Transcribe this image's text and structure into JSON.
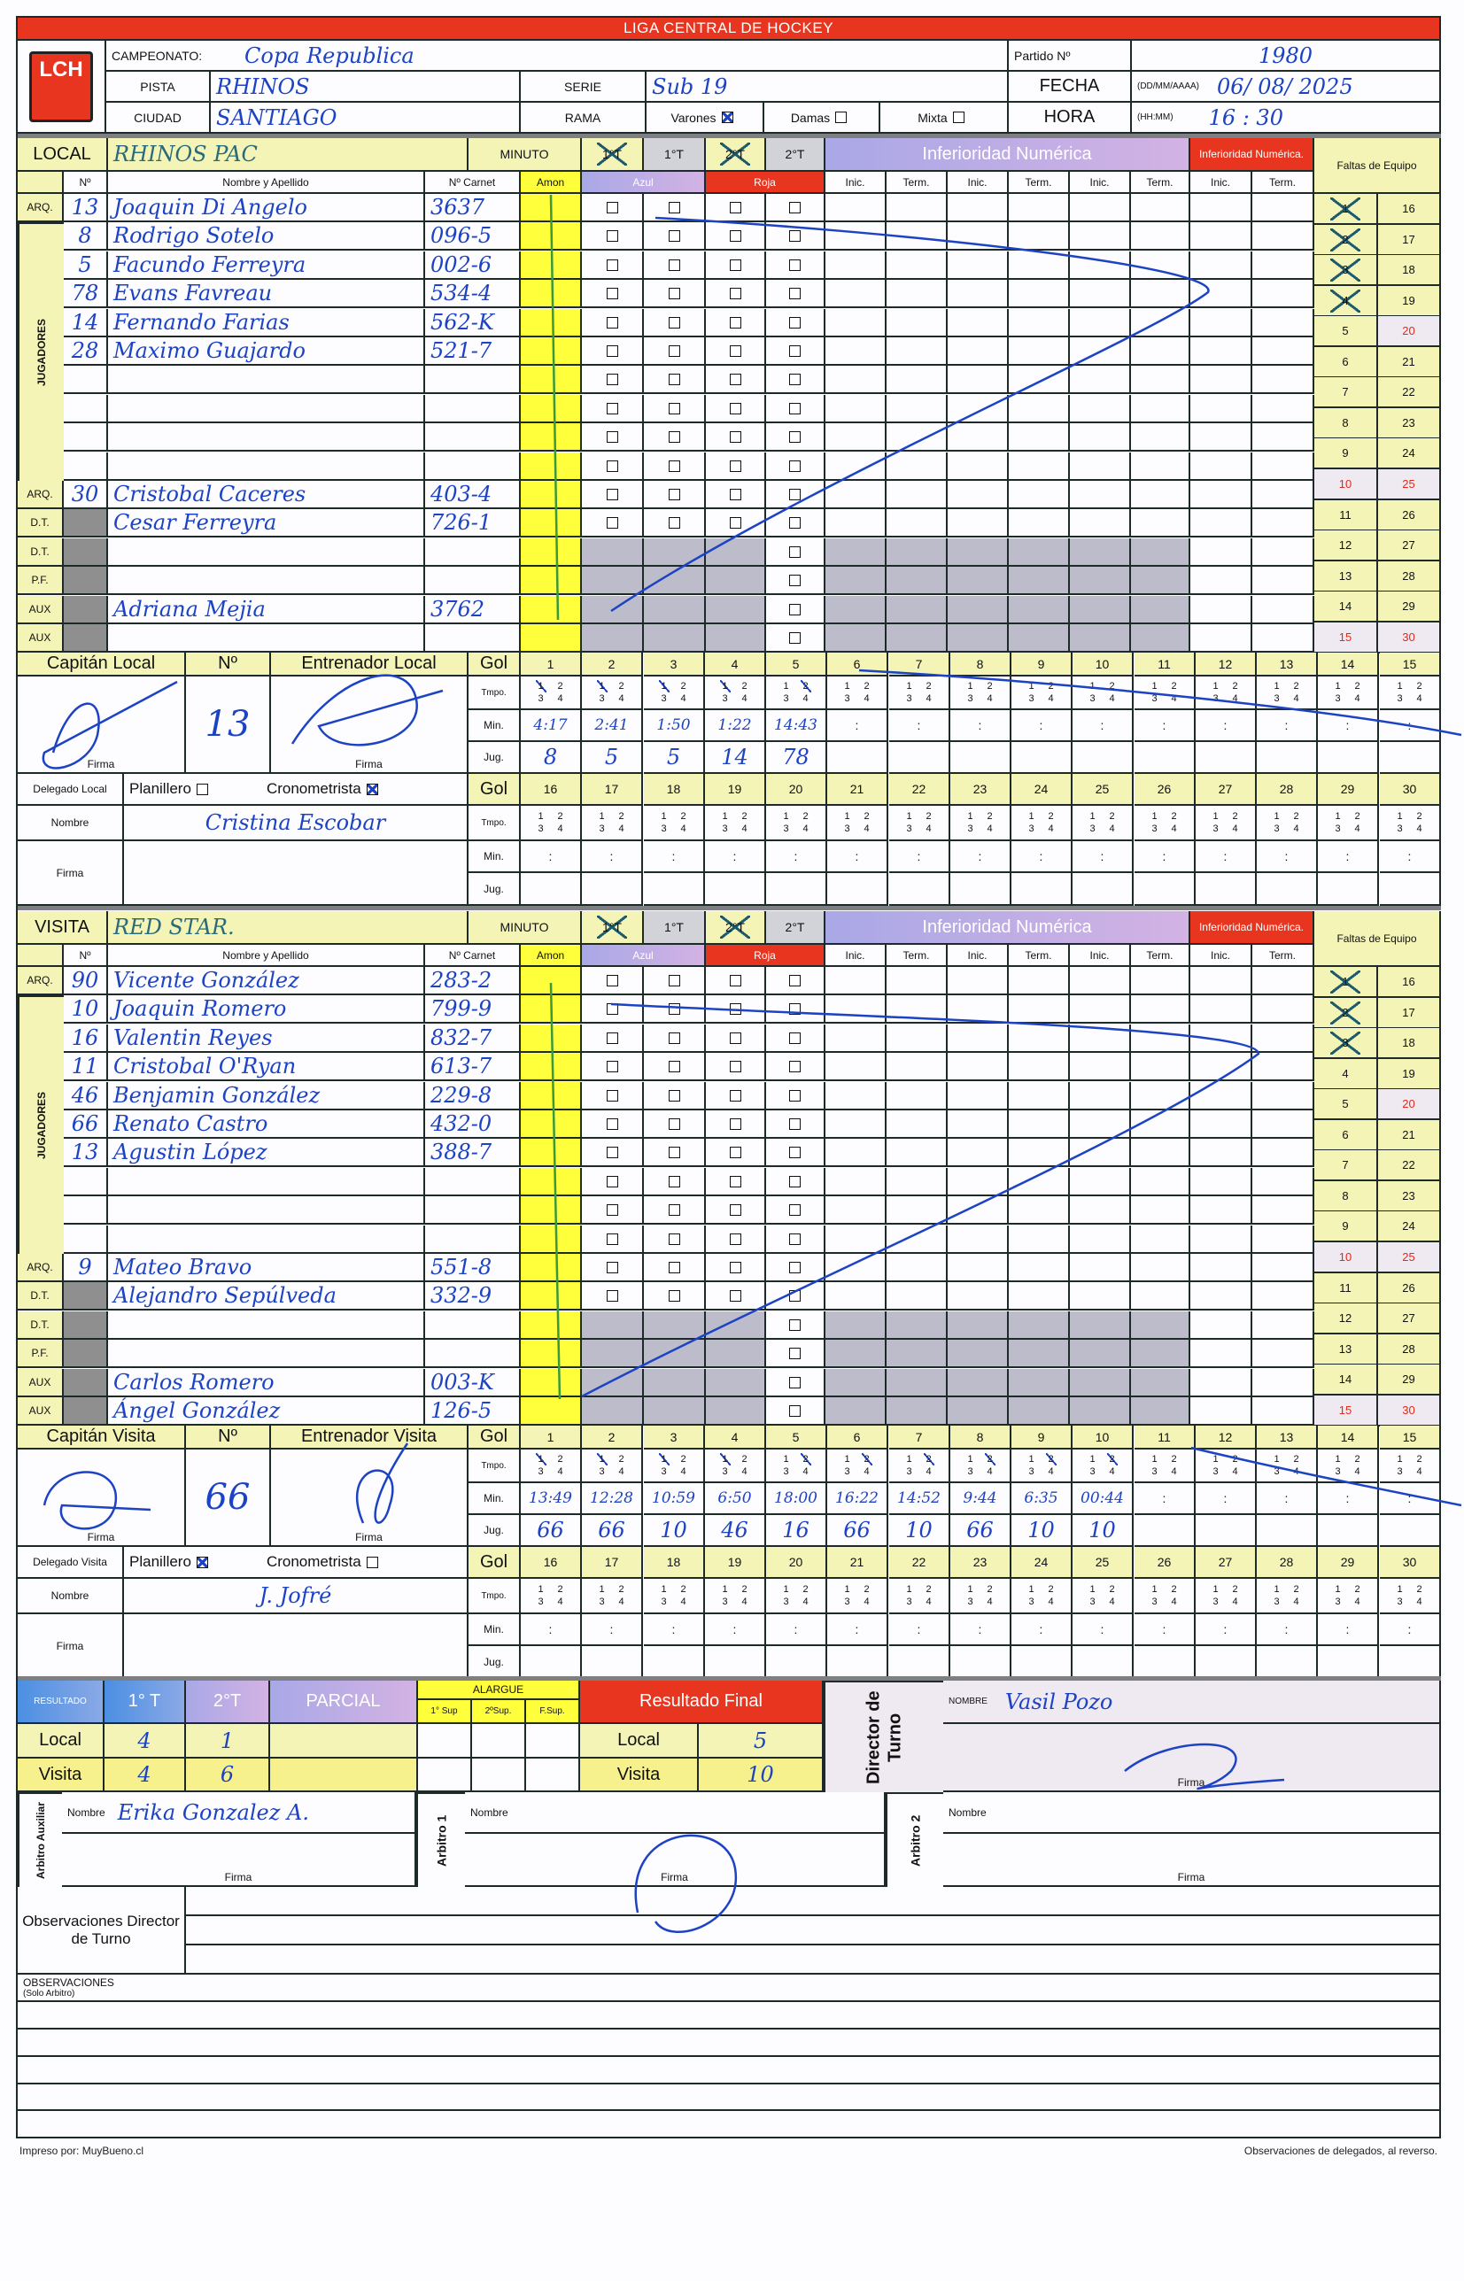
{
  "title": "LIGA CENTRAL DE HOCKEY",
  "logo_text": "LCH",
  "header": {
    "campeonato_label": "CAMPEONATO:",
    "campeonato": "Copa Republica",
    "partido_label": "Partido Nº",
    "partido": "1980",
    "pista_label": "PISTA",
    "pista": "RHINOS",
    "serie_label": "SERIE",
    "serie": "Sub 19",
    "fecha_label": "FECHA",
    "fecha_format": "(DD/MM/AAAA)",
    "fecha": "06/ 08/ 2025",
    "ciudad_label": "CIUDAD",
    "ciudad": "SANTIAGO",
    "rama_label": "RAMA",
    "rama": [
      {
        "label": "Varones",
        "checked": true
      },
      {
        "label": "Damas",
        "checked": false
      },
      {
        "label": "Mixta",
        "checked": false
      }
    ],
    "hora_label": "HORA",
    "hora_format": "(HH:MM)",
    "hora": "16 : 30"
  },
  "columns": {
    "num": "Nº",
    "name": "Nombre y Apellido",
    "carnet": "Nº Carnet",
    "amon": "Amon",
    "azul": "Azul",
    "roja": "Roja",
    "inic": "Inic.",
    "term": "Term.",
    "jugadores": "JUGADORES"
  },
  "goal_labels": {
    "gol": "Gol",
    "tmpo": "Tmpo.",
    "min": "Min.",
    "jug": "Jug.",
    "colon": ":",
    "digits": [
      "1",
      "2",
      "3",
      "4"
    ]
  },
  "goal_numbers": [
    "1",
    "2",
    "3",
    "4",
    "5",
    "6",
    "7",
    "8",
    "9",
    "10",
    "11",
    "12",
    "13",
    "14",
    "15",
    "16",
    "17",
    "18",
    "19",
    "20",
    "21",
    "22",
    "23",
    "24",
    "25",
    "26",
    "27",
    "28",
    "29",
    "30"
  ],
  "teams": [
    {
      "label": "LOCAL",
      "name": "RHINOS   PAC",
      "minuto_label": "MINUTO",
      "periods": [
        {
          "label": "1°T",
          "crossed": true
        },
        {
          "label": "1°T",
          "crossed": false
        },
        {
          "label": "2°T",
          "crossed": true
        },
        {
          "label": "2°T",
          "crossed": false
        }
      ],
      "inferioridad_label": "Inferioridad Numérica",
      "inferioridad2_label": "Inferioridad Numérica.",
      "faltas_label": "Faltas de Equipo",
      "faltas_marked": 4,
      "rows": [
        {
          "role": "ARQ.",
          "num": "13",
          "name": "Joaquin Di Angelo",
          "carnet": "3637"
        },
        {
          "role": "",
          "num": "8",
          "name": "Rodrigo Sotelo",
          "carnet": "096-5"
        },
        {
          "role": "",
          "num": "5",
          "name": "Facundo Ferreyra",
          "carnet": "002-6"
        },
        {
          "role": "",
          "num": "78",
          "name": "Evans Favreau",
          "carnet": "534-4"
        },
        {
          "role": "",
          "num": "14",
          "name": "Fernando Farias",
          "carnet": "562-K"
        },
        {
          "role": "",
          "num": "28",
          "name": "Maximo Guajardo",
          "carnet": "521-7"
        },
        {
          "role": "",
          "num": "",
          "name": "",
          "carnet": ""
        },
        {
          "role": "",
          "num": "",
          "name": "",
          "carnet": ""
        },
        {
          "role": "",
          "num": "",
          "name": "",
          "carnet": ""
        },
        {
          "role": "",
          "num": "",
          "name": "",
          "carnet": ""
        },
        {
          "role": "ARQ.",
          "num": "30",
          "name": "Cristobal Caceres",
          "carnet": "403-4"
        },
        {
          "role": "D.T.",
          "num": "",
          "name": "Cesar Ferreyra",
          "carnet": "726-1"
        },
        {
          "role": "D.T.",
          "num": "",
          "name": "",
          "carnet": ""
        },
        {
          "role": "P.F.",
          "num": "",
          "name": "",
          "carnet": ""
        },
        {
          "role": "AUX",
          "num": "",
          "name": "Adriana Mejia",
          "carnet": "3762"
        },
        {
          "role": "AUX",
          "num": "",
          "name": "",
          "carnet": ""
        }
      ],
      "captain": {
        "label": "Capitán Local",
        "num_label": "Nº",
        "num": "13",
        "coach_label": "Entrenador Local",
        "firma_label": "Firma"
      },
      "delegado": {
        "label": "Delegado Local",
        "planillero": "Planillero",
        "planillero_checked": false,
        "crono": "Cronometrista",
        "crono_checked": true,
        "nombre_label": "Nombre",
        "nombre": "Cristina Escobar",
        "firma_label": "Firma"
      },
      "goals": [
        {
          "period": 1,
          "min": "4:17",
          "player": "8"
        },
        {
          "period": 1,
          "min": "2:41",
          "player": "5"
        },
        {
          "period": 1,
          "min": "1:50",
          "player": "5"
        },
        {
          "period": 1,
          "min": "1:22",
          "player": "14"
        },
        {
          "period": 2,
          "min": "14:43",
          "player": "78"
        }
      ]
    },
    {
      "label": "VISITA",
      "name": "RED   STAR.",
      "minuto_label": "MINUTO",
      "periods": [
        {
          "label": "1°T",
          "crossed": true
        },
        {
          "label": "1°T",
          "crossed": false
        },
        {
          "label": "2°T",
          "crossed": true
        },
        {
          "label": "2°T",
          "crossed": false
        }
      ],
      "inferioridad_label": "Inferioridad Numérica",
      "inferioridad2_label": "Inferioridad Numérica.",
      "faltas_label": "Faltas de Equipo",
      "faltas_marked": 3,
      "rows": [
        {
          "role": "ARQ.",
          "num": "90",
          "name": "Vicente González",
          "carnet": "283-2"
        },
        {
          "role": "",
          "num": "10",
          "name": "Joaquin Romero",
          "carnet": "799-9"
        },
        {
          "role": "",
          "num": "16",
          "name": "Valentin Reyes",
          "carnet": "832-7"
        },
        {
          "role": "",
          "num": "11",
          "name": "Cristobal O'Ryan",
          "carnet": "613-7"
        },
        {
          "role": "",
          "num": "46",
          "name": "Benjamin González",
          "carnet": "229-8"
        },
        {
          "role": "",
          "num": "66",
          "name": "Renato Castro",
          "carnet": "432-0"
        },
        {
          "role": "",
          "num": "13",
          "name": "Agustin López",
          "carnet": "388-7"
        },
        {
          "role": "",
          "num": "",
          "name": "",
          "carnet": ""
        },
        {
          "role": "",
          "num": "",
          "name": "",
          "carnet": ""
        },
        {
          "role": "",
          "num": "",
          "name": "",
          "carnet": ""
        },
        {
          "role": "ARQ.",
          "num": "9",
          "name": "Mateo Bravo",
          "carnet": "551-8"
        },
        {
          "role": "D.T.",
          "num": "",
          "name": "Alejandro Sepúlveda",
          "carnet": "332-9"
        },
        {
          "role": "D.T.",
          "num": "",
          "name": "",
          "carnet": ""
        },
        {
          "role": "P.F.",
          "num": "",
          "name": "",
          "carnet": ""
        },
        {
          "role": "AUX",
          "num": "",
          "name": "Carlos Romero",
          "carnet": "003-K"
        },
        {
          "role": "AUX",
          "num": "",
          "name": "Ángel González",
          "carnet": "126-5"
        }
      ],
      "captain": {
        "label": "Capitán Visita",
        "num_label": "Nº",
        "num": "66",
        "coach_label": "Entrenador Visita",
        "firma_label": "Firma"
      },
      "delegado": {
        "label": "Delegado Visita",
        "planillero": "Planillero",
        "planillero_checked": true,
        "crono": "Cronometrista",
        "crono_checked": false,
        "nombre_label": "Nombre",
        "nombre": "J. Jofré",
        "firma_label": "Firma"
      },
      "goals": [
        {
          "period": 1,
          "min": "13:49",
          "player": "66"
        },
        {
          "period": 1,
          "min": "12:28",
          "player": "66"
        },
        {
          "period": 1,
          "min": "10:59",
          "player": "10"
        },
        {
          "period": 1,
          "min": "6:50",
          "player": "46"
        },
        {
          "period": 2,
          "min": "18:00",
          "player": "16"
        },
        {
          "period": 2,
          "min": "16:22",
          "player": "66"
        },
        {
          "period": 2,
          "min": "14:52",
          "player": "10"
        },
        {
          "period": 2,
          "min": "9:44",
          "player": "66"
        },
        {
          "period": 2,
          "min": "6:35",
          "player": "10"
        },
        {
          "period": 2,
          "min": "00:44",
          "player": "10"
        }
      ]
    }
  ],
  "results": {
    "label": "RESULTADO",
    "t1": "1° T",
    "t2": "2°T",
    "parcial": "PARCIAL",
    "alargue": "ALARGUE",
    "sups": [
      "1° Sup",
      "2ºSup.",
      "F.Sup."
    ],
    "final": "Resultado Final",
    "local_label": "Local",
    "visita_label": "Visita",
    "local": {
      "t1": "4",
      "t2": "1",
      "final": "5"
    },
    "visita": {
      "t1": "4",
      "t2": "6",
      "final": "10"
    },
    "director_label": "Director de Turno",
    "nombre_label": "NOMBRE",
    "director_nombre": "Vasil Pozo",
    "firma_label": "Firma"
  },
  "referees": {
    "aux_label": "Arbitro Auxiliar",
    "aux_nombre": "Erika Gonzalez A.",
    "arb1_label": "Arbitro 1",
    "arb2_label": "Arbitro 2",
    "nombre_label": "Nombre",
    "firma_label": "Firma"
  },
  "observations": {
    "director_label": "Observaciones Director de Turno",
    "label": "OBSERVACIONES",
    "sublabel": "(Solo Arbitro)"
  },
  "footer": {
    "left": "Impreso por: MuyBueno.cl",
    "right": "Observaciones de delegados, al reverso."
  },
  "colors": {
    "red": "#e8351f",
    "pale_yellow": "#f3f4b6",
    "yellow": "#ffff3c",
    "ink": "#1c43c4"
  }
}
